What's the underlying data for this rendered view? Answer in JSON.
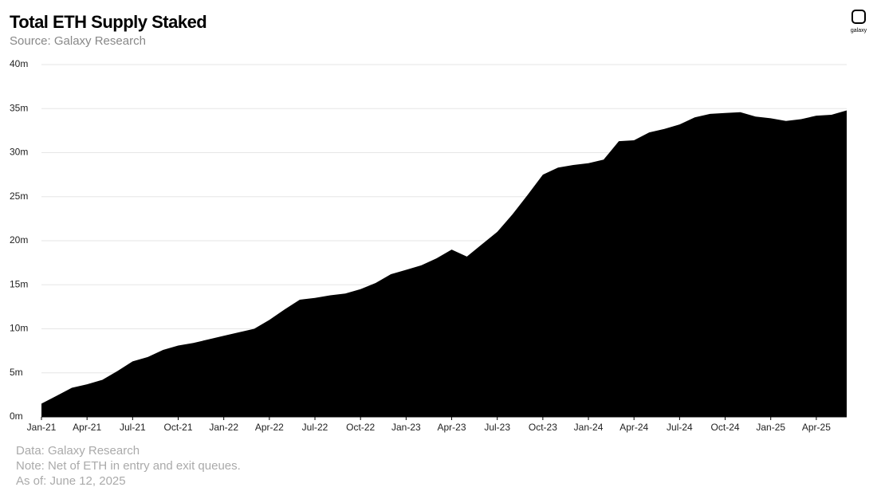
{
  "chart_data": {
    "type": "area",
    "title": "Total ETH Supply Staked",
    "subtitle": "Source: Galaxy Research",
    "logo": "galaxy",
    "notes": [
      "Data: Galaxy Research",
      "Note: Net of ETH in entry and exit queues.",
      "As of: June 12, 2025"
    ],
    "color": "#000000",
    "grid": true,
    "x": [
      "2021-01",
      "2021-02",
      "2021-03",
      "2021-04",
      "2021-05",
      "2021-06",
      "2021-07",
      "2021-08",
      "2021-09",
      "2021-10",
      "2021-11",
      "2021-12",
      "2022-01",
      "2022-02",
      "2022-03",
      "2022-04",
      "2022-05",
      "2022-06",
      "2022-07",
      "2022-08",
      "2022-09",
      "2022-10",
      "2022-11",
      "2022-12",
      "2023-01",
      "2023-02",
      "2023-03",
      "2023-04",
      "2023-05",
      "2023-06",
      "2023-07",
      "2023-08",
      "2023-09",
      "2023-10",
      "2023-11",
      "2023-12",
      "2024-01",
      "2024-02",
      "2024-03",
      "2024-04",
      "2024-05",
      "2024-06",
      "2024-07",
      "2024-08",
      "2024-09",
      "2024-10",
      "2024-11",
      "2024-12",
      "2025-01",
      "2025-02",
      "2025-03",
      "2025-04",
      "2025-05",
      "2025-06"
    ],
    "values": [
      1.5,
      2.4,
      3.3,
      3.7,
      4.2,
      5.2,
      6.3,
      6.8,
      7.6,
      8.1,
      8.4,
      8.8,
      9.2,
      9.6,
      10.0,
      11.0,
      12.2,
      13.3,
      13.5,
      13.8,
      14.0,
      14.5,
      15.2,
      16.2,
      16.7,
      17.2,
      18.0,
      19.0,
      18.2,
      19.6,
      21.0,
      23.0,
      25.2,
      27.5,
      28.3,
      28.6,
      28.8,
      29.2,
      31.3,
      31.4,
      32.3,
      32.7,
      33.2,
      34.0,
      34.4,
      34.5,
      34.6,
      34.1,
      33.9,
      33.6,
      33.8,
      34.2,
      34.3,
      34.8
    ],
    "xlim": [
      "2021-01",
      "2025-06"
    ],
    "xticks": [
      {
        "value": "2021-01",
        "label": "Jan-21"
      },
      {
        "value": "2021-04",
        "label": "Apr-21"
      },
      {
        "value": "2021-07",
        "label": "Jul-21"
      },
      {
        "value": "2021-10",
        "label": "Oct-21"
      },
      {
        "value": "2022-01",
        "label": "Jan-22"
      },
      {
        "value": "2022-04",
        "label": "Apr-22"
      },
      {
        "value": "2022-07",
        "label": "Jul-22"
      },
      {
        "value": "2022-10",
        "label": "Oct-22"
      },
      {
        "value": "2023-01",
        "label": "Jan-23"
      },
      {
        "value": "2023-04",
        "label": "Apr-23"
      },
      {
        "value": "2023-07",
        "label": "Jul-23"
      },
      {
        "value": "2023-10",
        "label": "Oct-23"
      },
      {
        "value": "2024-01",
        "label": "Jan-24"
      },
      {
        "value": "2024-04",
        "label": "Apr-24"
      },
      {
        "value": "2024-07",
        "label": "Jul-24"
      },
      {
        "value": "2024-10",
        "label": "Oct-24"
      },
      {
        "value": "2025-01",
        "label": "Jan-25"
      },
      {
        "value": "2025-04",
        "label": "Apr-25"
      }
    ],
    "ylim": [
      0,
      40
    ],
    "yticks": [
      {
        "value": 0,
        "label": "0m"
      },
      {
        "value": 5,
        "label": "5m"
      },
      {
        "value": 10,
        "label": "10m"
      },
      {
        "value": 15,
        "label": "15m"
      },
      {
        "value": 20,
        "label": "20m"
      },
      {
        "value": 25,
        "label": "25m"
      },
      {
        "value": 30,
        "label": "30m"
      },
      {
        "value": 35,
        "label": "35m"
      },
      {
        "value": 40,
        "label": "40m"
      }
    ]
  }
}
